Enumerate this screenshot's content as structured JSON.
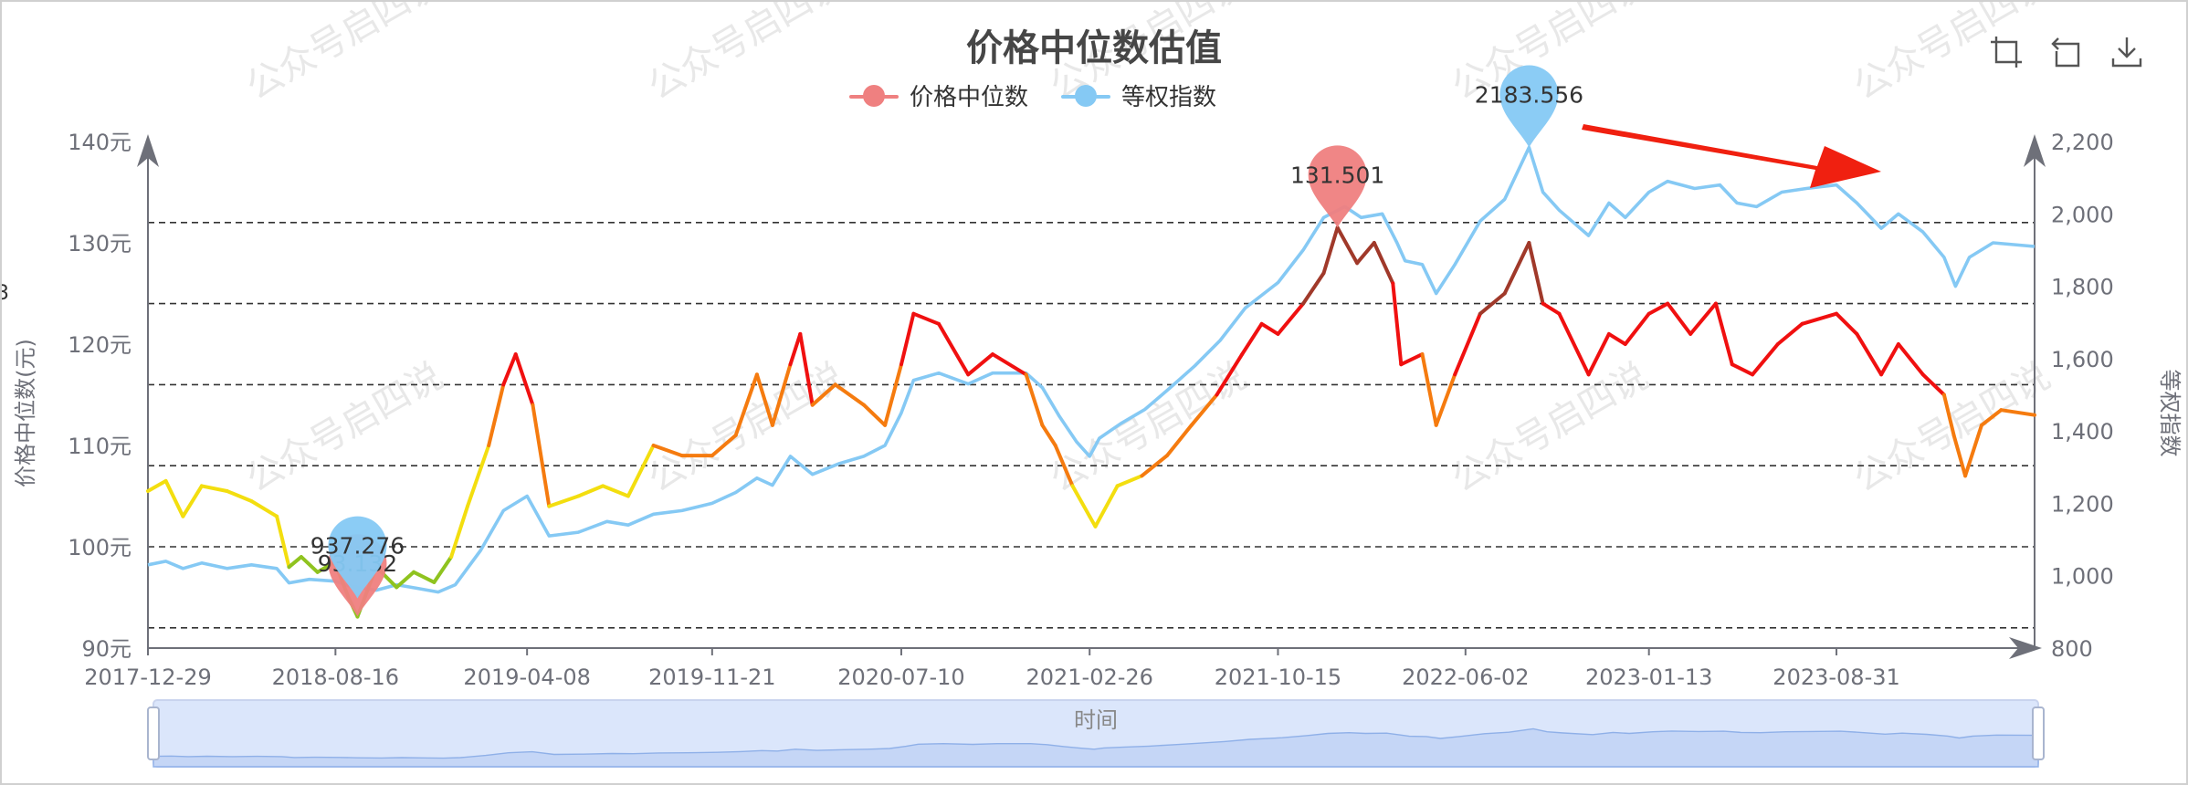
{
  "chart": {
    "title": "价格中位数估值",
    "watermark": "公众号启四说",
    "legend": [
      {
        "name": "价格中位数",
        "color": "#ef8080"
      },
      {
        "name": "等权指数",
        "color": "#85c9f4"
      }
    ],
    "toolbox": [
      {
        "name": "zoom-icon"
      },
      {
        "name": "zoom-reset-icon"
      },
      {
        "name": "download-icon"
      }
    ],
    "y_left_label": "价格中位数(元)",
    "y_right_label": "等权指数",
    "slider_label": "时间",
    "edge_fragment": "3"
  },
  "chart_data": {
    "type": "line",
    "x_tick_labels": [
      "2017-12-29",
      "2018-08-16",
      "2019-04-08",
      "2019-11-21",
      "2020-07-10",
      "2021-02-26",
      "2021-10-15",
      "2022-06-02",
      "2023-01-13",
      "2023-08-31"
    ],
    "x_range": [
      "2017-12-29",
      "2024-04-30"
    ],
    "y_left": {
      "label": "价格中位数(元)",
      "min": 90,
      "max": 140,
      "ticks": [
        "90元",
        "100元",
        "110元",
        "120元",
        "130元",
        "140元"
      ]
    },
    "y_right": {
      "label": "等权指数",
      "min": 800,
      "max": 2200,
      "ticks": [
        "800",
        "1,000",
        "1,200",
        "1,400",
        "1,600",
        "1,800",
        "2,000",
        "2,200"
      ]
    },
    "reference_lines_left": [
      92,
      100,
      108,
      116,
      124,
      132
    ],
    "color_bands": [
      {
        "max": 100,
        "color": "#8fc31f"
      },
      {
        "max": 108,
        "color": "#f3de0f"
      },
      {
        "max": 116,
        "color": "#f57b0f"
      },
      {
        "max": 124,
        "color": "#f01010"
      },
      {
        "max": 999,
        "color": "#a0392a"
      }
    ],
    "series": [
      {
        "name": "价格中位数",
        "axis": "left",
        "color": "#ef8080",
        "points": [
          [
            "2017-12-29",
            105.5
          ],
          [
            "2018-01-20",
            106.5
          ],
          [
            "2018-02-10",
            103
          ],
          [
            "2018-03-05",
            106
          ],
          [
            "2018-04-05",
            105.5
          ],
          [
            "2018-05-05",
            104.5
          ],
          [
            "2018-06-05",
            103
          ],
          [
            "2018-06-20",
            98
          ],
          [
            "2018-07-05",
            99
          ],
          [
            "2018-07-25",
            97.5
          ],
          [
            "2018-08-15",
            98.5
          ],
          [
            "2018-09-01",
            95
          ],
          [
            "2018-09-12",
            93.1
          ],
          [
            "2018-10-05",
            98
          ],
          [
            "2018-10-30",
            96
          ],
          [
            "2018-11-20",
            97.5
          ],
          [
            "2018-12-15",
            96.5
          ],
          [
            "2019-01-05",
            99
          ],
          [
            "2019-01-25",
            104
          ],
          [
            "2019-02-20",
            110
          ],
          [
            "2019-03-10",
            116
          ],
          [
            "2019-03-25",
            119
          ],
          [
            "2019-04-15",
            114
          ],
          [
            "2019-05-05",
            104
          ],
          [
            "2019-06-10",
            105
          ],
          [
            "2019-07-10",
            106
          ],
          [
            "2019-08-10",
            105
          ],
          [
            "2019-09-10",
            110
          ],
          [
            "2019-10-15",
            109
          ],
          [
            "2019-11-21",
            109
          ],
          [
            "2019-12-20",
            111
          ],
          [
            "2020-01-15",
            117
          ],
          [
            "2020-02-03",
            112
          ],
          [
            "2020-02-25",
            118
          ],
          [
            "2020-03-08",
            121
          ],
          [
            "2020-03-23",
            114
          ],
          [
            "2020-04-20",
            116
          ],
          [
            "2020-05-25",
            114
          ],
          [
            "2020-06-20",
            112
          ],
          [
            "2020-07-10",
            118
          ],
          [
            "2020-07-25",
            123
          ],
          [
            "2020-08-25",
            122
          ],
          [
            "2020-09-30",
            117
          ],
          [
            "2020-10-30",
            119
          ],
          [
            "2020-12-10",
            117
          ],
          [
            "2020-12-30",
            112
          ],
          [
            "2021-01-15",
            110
          ],
          [
            "2021-02-05",
            106
          ],
          [
            "2021-02-26",
            103
          ],
          [
            "2021-03-05",
            102
          ],
          [
            "2021-04-01",
            106
          ],
          [
            "2021-05-01",
            107
          ],
          [
            "2021-06-01",
            109
          ],
          [
            "2021-07-01",
            112
          ],
          [
            "2021-08-01",
            115
          ],
          [
            "2021-09-01",
            119
          ],
          [
            "2021-09-25",
            122
          ],
          [
            "2021-10-15",
            121
          ],
          [
            "2021-11-15",
            124
          ],
          [
            "2021-12-10",
            127
          ],
          [
            "2021-12-27",
            131.5
          ],
          [
            "2022-01-20",
            128
          ],
          [
            "2022-02-10",
            130
          ],
          [
            "2022-03-05",
            126
          ],
          [
            "2022-03-15",
            118
          ],
          [
            "2022-04-10",
            119
          ],
          [
            "2022-04-27",
            112
          ],
          [
            "2022-05-20",
            117
          ],
          [
            "2022-06-20",
            123
          ],
          [
            "2022-07-20",
            125
          ],
          [
            "2022-08-19",
            130
          ],
          [
            "2022-09-05",
            124
          ],
          [
            "2022-09-25",
            123
          ],
          [
            "2022-10-31",
            117
          ],
          [
            "2022-11-25",
            121
          ],
          [
            "2022-12-15",
            120
          ],
          [
            "2023-01-13",
            123
          ],
          [
            "2023-02-05",
            124
          ],
          [
            "2023-03-05",
            121
          ],
          [
            "2023-04-05",
            124
          ],
          [
            "2023-04-25",
            118
          ],
          [
            "2023-05-20",
            117
          ],
          [
            "2023-06-20",
            120
          ],
          [
            "2023-07-20",
            122
          ],
          [
            "2023-08-31",
            123
          ],
          [
            "2023-09-25",
            121
          ],
          [
            "2023-10-25",
            117
          ],
          [
            "2023-11-15",
            120
          ],
          [
            "2023-12-15",
            117
          ],
          [
            "2024-01-10",
            115
          ],
          [
            "2024-01-22",
            111
          ],
          [
            "2024-02-05",
            107
          ],
          [
            "2024-02-25",
            112
          ],
          [
            "2024-03-20",
            113.5
          ],
          [
            "2024-04-30",
            113
          ]
        ]
      },
      {
        "name": "等权指数",
        "axis": "right",
        "color": "#85c9f4",
        "points": [
          [
            "2017-12-29",
            1030
          ],
          [
            "2018-01-20",
            1040
          ],
          [
            "2018-02-10",
            1020
          ],
          [
            "2018-03-05",
            1035
          ],
          [
            "2018-04-05",
            1020
          ],
          [
            "2018-05-05",
            1030
          ],
          [
            "2018-06-05",
            1020
          ],
          [
            "2018-06-20",
            980
          ],
          [
            "2018-07-15",
            990
          ],
          [
            "2018-08-15",
            985
          ],
          [
            "2018-09-05",
            970
          ],
          [
            "2018-10-05",
            960
          ],
          [
            "2018-10-30",
            975
          ],
          [
            "2018-11-25",
            965
          ],
          [
            "2018-12-20",
            955
          ],
          [
            "2019-01-10",
            975
          ],
          [
            "2019-02-10",
            1070
          ],
          [
            "2019-03-10",
            1180
          ],
          [
            "2019-04-08",
            1220
          ],
          [
            "2019-05-05",
            1110
          ],
          [
            "2019-06-10",
            1120
          ],
          [
            "2019-07-15",
            1150
          ],
          [
            "2019-08-10",
            1140
          ],
          [
            "2019-09-10",
            1170
          ],
          [
            "2019-10-15",
            1180
          ],
          [
            "2019-11-21",
            1200
          ],
          [
            "2019-12-20",
            1230
          ],
          [
            "2020-01-15",
            1270
          ],
          [
            "2020-02-03",
            1250
          ],
          [
            "2020-02-25",
            1330
          ],
          [
            "2020-03-23",
            1280
          ],
          [
            "2020-04-25",
            1310
          ],
          [
            "2020-05-25",
            1330
          ],
          [
            "2020-06-20",
            1360
          ],
          [
            "2020-07-10",
            1450
          ],
          [
            "2020-07-25",
            1540
          ],
          [
            "2020-08-25",
            1560
          ],
          [
            "2020-09-30",
            1530
          ],
          [
            "2020-10-30",
            1560
          ],
          [
            "2020-12-10",
            1560
          ],
          [
            "2020-12-30",
            1520
          ],
          [
            "2021-01-20",
            1440
          ],
          [
            "2021-02-10",
            1370
          ],
          [
            "2021-02-26",
            1330
          ],
          [
            "2021-03-10",
            1380
          ],
          [
            "2021-04-05",
            1420
          ],
          [
            "2021-05-05",
            1460
          ],
          [
            "2021-06-05",
            1520
          ],
          [
            "2021-07-05",
            1580
          ],
          [
            "2021-08-05",
            1650
          ],
          [
            "2021-09-05",
            1740
          ],
          [
            "2021-10-15",
            1810
          ],
          [
            "2021-11-15",
            1900
          ],
          [
            "2021-12-10",
            1990
          ],
          [
            "2022-01-05",
            2020
          ],
          [
            "2022-01-25",
            1990
          ],
          [
            "2022-02-20",
            2000
          ],
          [
            "2022-03-10",
            1920
          ],
          [
            "2022-03-20",
            1870
          ],
          [
            "2022-04-10",
            1860
          ],
          [
            "2022-04-27",
            1780
          ],
          [
            "2022-05-20",
            1860
          ],
          [
            "2022-06-20",
            1980
          ],
          [
            "2022-07-20",
            2040
          ],
          [
            "2022-08-19",
            2183.6
          ],
          [
            "2022-09-05",
            2060
          ],
          [
            "2022-09-25",
            2010
          ],
          [
            "2022-10-31",
            1940
          ],
          [
            "2022-11-25",
            2030
          ],
          [
            "2022-12-15",
            1990
          ],
          [
            "2023-01-13",
            2060
          ],
          [
            "2023-02-05",
            2090
          ],
          [
            "2023-03-10",
            2070
          ],
          [
            "2023-04-10",
            2080
          ],
          [
            "2023-05-01",
            2030
          ],
          [
            "2023-05-25",
            2020
          ],
          [
            "2023-06-25",
            2060
          ],
          [
            "2023-07-25",
            2070
          ],
          [
            "2023-08-31",
            2080
          ],
          [
            "2023-09-25",
            2030
          ],
          [
            "2023-10-25",
            1960
          ],
          [
            "2023-11-15",
            2000
          ],
          [
            "2023-12-15",
            1950
          ],
          [
            "2024-01-10",
            1880
          ],
          [
            "2024-01-24",
            1800
          ],
          [
            "2024-02-10",
            1880
          ],
          [
            "2024-03-10",
            1920
          ],
          [
            "2024-04-30",
            1910
          ]
        ]
      }
    ],
    "mark_points": [
      {
        "series": "价格中位数",
        "label": "131.501",
        "x": "2021-12-27",
        "y": 131.501,
        "color": "#ef8080",
        "axis": "left"
      },
      {
        "series": "价格中位数",
        "label": "93.132",
        "x": "2018-09-12",
        "y": 93.132,
        "color": "#ef8080",
        "axis": "left"
      },
      {
        "series": "等权指数",
        "label": "2183.556",
        "x": "2022-08-19",
        "y": 2183.556,
        "color": "#85c9f4",
        "axis": "right"
      },
      {
        "series": "等权指数",
        "label": "937.276",
        "x": "2018-09-12",
        "y": 937.276,
        "color": "#85c9f4",
        "axis": "right"
      }
    ],
    "annotation": {
      "type": "arrow",
      "color": "#f02010",
      "direction": "down-right"
    },
    "grid": "dashed horizontal lines",
    "legend_position": "top-center"
  }
}
